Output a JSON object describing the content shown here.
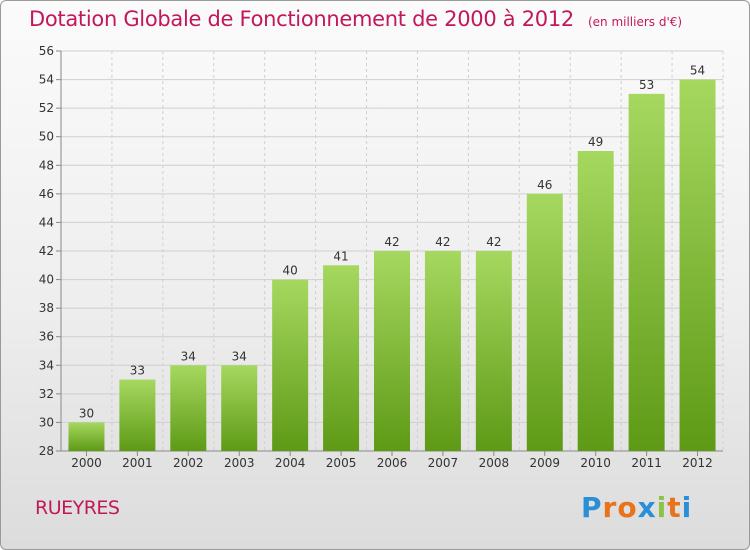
{
  "header": {
    "title": "Dotation Globale de Fonctionnement de 2000 à 2012",
    "unit": "(en milliers d'€)"
  },
  "footer": {
    "place": "RUEYRES",
    "logo_text": "Proxiti",
    "logo_colors": [
      "#2b8fd8",
      "#e8731a",
      "#e8731a",
      "#2b8fd8",
      "#8bc34a",
      "#e8731a",
      "#2b8fd8"
    ]
  },
  "colors": {
    "bar_light": "#a6d860",
    "bar_dark": "#5e9a16",
    "title": "#c2185b",
    "grid": "#cfcfcf"
  },
  "chart_data": {
    "type": "bar",
    "title": "Dotation Globale de Fonctionnement de 2000 à 2012",
    "subtitle": "(en milliers d'€)",
    "xlabel": "",
    "ylabel": "",
    "categories": [
      "2000",
      "2001",
      "2002",
      "2003",
      "2004",
      "2005",
      "2006",
      "2007",
      "2008",
      "2009",
      "2010",
      "2011",
      "2012"
    ],
    "values": [
      30,
      33,
      34,
      34,
      40,
      41,
      42,
      42,
      42,
      46,
      49,
      53,
      54
    ],
    "ylim": [
      28,
      56
    ],
    "yticks": [
      28,
      30,
      32,
      34,
      36,
      38,
      40,
      42,
      44,
      46,
      48,
      50,
      52,
      54,
      56
    ],
    "grid": true,
    "data_labels": true
  }
}
